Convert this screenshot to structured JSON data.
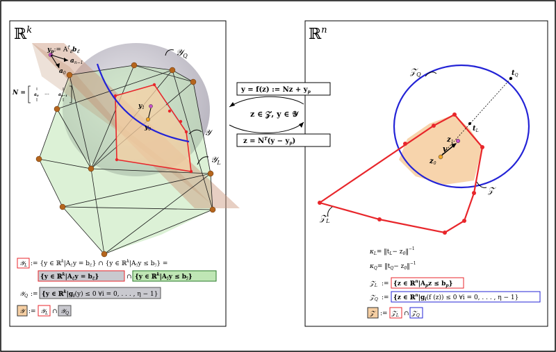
{
  "left_panel": {
    "space_label": "ℝ",
    "space_exp": "k",
    "yp_label": "y",
    "yp_sub": "p",
    "yp_def": ":= A",
    "yp_def_sub": "ℰ",
    "yp_def_sup": "†",
    "yp_def_tail": "b",
    "a_n1": "a",
    "a_n1_sub": "n−1",
    "a0": "a",
    "a0_sub": "0",
    "N_label": "N =",
    "N_col1": "a",
    "N_col1_sub": "0",
    "N_dots": "⋯",
    "N_col2": "a",
    "N_col2_sub": "n−1",
    "y1": "y",
    "y1_sub": "1",
    "y0": "y",
    "y0_sub": "0",
    "YQ": "𝒴",
    "YQ_sub": "Q",
    "Y": "𝒴",
    "YL": "𝒴",
    "YL_sub": "L",
    "def_YL_lhs": "𝒴",
    "def_YL_lhs_sub": "L",
    "def_YL_1": ":= {y ∈ ℝ",
    "def_YL_1b": "k",
    "def_YL_1c": "|A",
    "def_YL_1d": "y = b",
    "def_YL_1e": "} ∩ {y ∈ ℝ",
    "def_YL_1f": "|A",
    "def_YL_1g": "y ≤ b",
    "def_YL_1h": "} =",
    "def_YL_box1": "{y ∈ ℝ",
    "def_YL_box1b": "|A",
    "def_YL_box1c": "y = b",
    "def_YL_box1d": "}",
    "def_YL_cap": "∩",
    "def_YL_box2": "{y ∈ ℝ",
    "def_YL_box2b": "|A",
    "def_YL_box2c": "y ≤ b",
    "def_YL_box2d": "}",
    "sub_E": "ℰ",
    "sub_I": "ℐ",
    "def_YQ_lhs": "𝒴",
    "def_YQ_lhs_sub": "Q",
    "def_YQ_eq": ":=",
    "def_YQ_box": "{y ∈ ℝ",
    "def_YQ_boxb": "|g",
    "def_YQ_boxc": "(y) ≤ 0  ∀i = 0, . . . , η − 1}",
    "def_Y_lhs": "𝒴",
    "def_Y_eq": ":=",
    "def_Y_cap": "∩"
  },
  "middle": {
    "map1": "y = f(z) := Nz + y",
    "map1_sub": "p",
    "cond": "z ∈ 𝒵, y ∈ 𝒴",
    "map2a": "z = N",
    "map2_sup": "T",
    "map2b": "(y − y",
    "map2_sub": "p",
    "map2c": ")"
  },
  "right_panel": {
    "space_label": "ℝ",
    "space_exp": "n",
    "ZQ": "𝒵",
    "ZQ_sub": "Q",
    "tQ": "t",
    "tQ_sub": "Q",
    "tL": "t",
    "tL_sub": "L",
    "z1": "z",
    "z1_sub": "1",
    "v": "v",
    "z0": "z",
    "z0_sub": "0",
    "Z": "𝒵",
    "ZL": "𝒵",
    "ZL_sub": "L",
    "kL": "κ",
    "kL_sub": "L",
    "kL_rhs": "= ‖t",
    "kL_rhs_sub": "L",
    "kL_rhs2": "− z",
    "kL_rhs2_sub": "0",
    "kL_rhs3": "‖",
    "kL_exp": "−1",
    "kQ": "κ",
    "kQ_sub": "Q",
    "kQ_rhs": "= ‖t",
    "kQ_rhs_sub": "Q",
    "kQ_rhs2": "− z",
    "kQ_rhs2_sub": "0",
    "kQ_rhs3": "‖",
    "kQ_exp": "−1",
    "defZL_lhs": "𝒵",
    "defZL_lhs_sub": "L",
    "defZL_eq": ":=",
    "defZL_box": "{z ∈ ℝ",
    "defZL_boxb": "n",
    "defZL_boxc": "|A",
    "defZL_boxd": "p",
    "defZL_boxe": "z ≤ b",
    "defZL_boxf": "p",
    "defZL_boxg": "}",
    "defZQ_lhs": "𝒵",
    "defZQ_lhs_sub": "Q",
    "defZQ_eq": ":=",
    "defZQ_box": "{z ∈ ℝ",
    "defZQ_boxb": "n",
    "defZQ_boxc": "|g",
    "defZQ_boxd": "i",
    "defZQ_boxe": "(f (z)) ≤ 0  ∀i = 0, . . . , η − 1}",
    "defZ_lhs": "𝒵",
    "defZ_eq": ":=",
    "defZ_cap": "∩"
  },
  "colors": {
    "red": "#e8262b",
    "blue": "#2323d6",
    "orange_fill": "#f6cfa3",
    "green_fill": "#bfe6b5",
    "gray_fill": "#c9c9cf",
    "brown_plane": "#c9957a",
    "node": "#b5651d"
  }
}
